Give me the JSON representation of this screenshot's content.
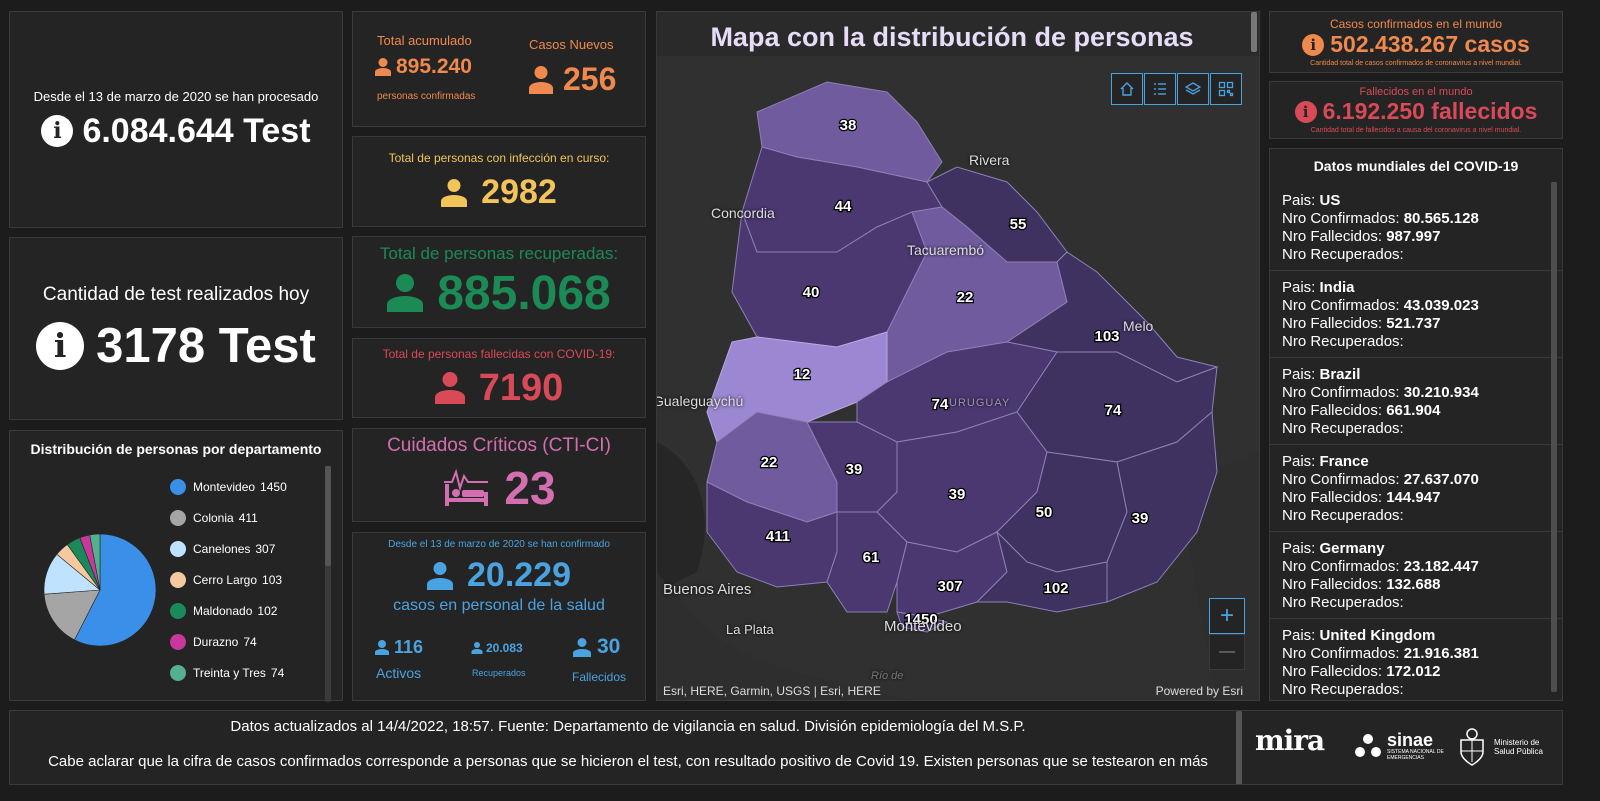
{
  "tests_total": {
    "caption": "Desde el 13 de marzo de 2020 se han procesado",
    "value": "6.084.644 Test"
  },
  "tests_today": {
    "caption": "Cantidad de test realizados hoy",
    "value": "3178 Test"
  },
  "distribution": {
    "title": "Distribución de personas por departamento",
    "items": [
      {
        "name": "Montevideo",
        "value": "1450",
        "color": "#3a8fe8"
      },
      {
        "name": "Colonia",
        "value": "411",
        "color": "#a5a5a5"
      },
      {
        "name": "Canelones",
        "value": "307",
        "color": "#bfe3ff"
      },
      {
        "name": "Cerro Largo",
        "value": "103",
        "color": "#f4c9a0"
      },
      {
        "name": "Maldonado",
        "value": "102",
        "color": "#1a8a5a"
      },
      {
        "name": "Durazno",
        "value": "74",
        "color": "#c7389a"
      },
      {
        "name": "Treinta y Tres",
        "value": "74",
        "color": "#54b08f"
      }
    ]
  },
  "accumulated": {
    "label": "Total acumulado",
    "value": "895.240",
    "sub": "personas confirmadas",
    "color": "#f0894d"
  },
  "new_cases": {
    "label": "Casos Nuevos",
    "value": "256",
    "color": "#f0894d"
  },
  "active": {
    "label": "Total de personas con infección en curso:",
    "value": "2982",
    "color": "#f2c45a"
  },
  "recovered": {
    "label": "Total de personas recuperadas:",
    "value": "885.068",
    "color": "#1b8a55"
  },
  "deceased": {
    "label": "Total de personas fallecidas con COVID-19:",
    "value": "7190",
    "color": "#d94a58"
  },
  "critical": {
    "label": "Cuidados Críticos (CTI-CI)",
    "value": "23",
    "color": "#d36fb0"
  },
  "health_staff": {
    "caption": "Desde el 13 de marzo de 2020 se han confirmado",
    "value": "20.229",
    "sub": "casos en personal de la salud",
    "color": "#4aa3e0",
    "active": {
      "value": "116",
      "label": "Activos"
    },
    "recovered": {
      "value": "20.083",
      "label": "Recuperados"
    },
    "deceased": {
      "value": "30",
      "label": "Fallecidos"
    }
  },
  "map": {
    "title": "Mapa con la distribución de personas",
    "labels": {
      "rivera": "Rivera",
      "concordia": "Concordia",
      "tacuarembo": "Tacuarembó",
      "melo": "Melo",
      "gualeguaychu": "Gualeguaychú",
      "uruguay": "URUGUAY",
      "buenos_aires": "Buenos Aires",
      "la_plata": "La Plata",
      "montevideo": "Montevideo",
      "rio": "Río de"
    },
    "counts": {
      "artigas": "38",
      "salto": "44",
      "rivera": "55",
      "paysandu": "40",
      "tacuarembo": "22",
      "cerro_largo": "103",
      "rio_negro": "12",
      "durazno": "74",
      "treinta_y_tres": "74",
      "soriano": "22",
      "flores": "39",
      "florida": "39",
      "lavalleja": "50",
      "rocha": "39",
      "colonia": "411",
      "san_jose": "61",
      "canelones": "307",
      "maldonado": "102",
      "montevideo": "1450"
    },
    "attribution": "Esri, HERE, Garmin, USGS | Esri, HERE",
    "powered": "Powered by Esri",
    "zoom_in": "+",
    "zoom_out": "—"
  },
  "world_confirmed": {
    "title": "Casos confirmados en el mundo",
    "value": "502.438.267 casos",
    "sub": "Cantidad total de casos confirmados de coronavirus a nivel mundial.",
    "color": "#f0894d"
  },
  "world_deaths": {
    "title": "Fallecidos en el mundo",
    "value": "6.192.250 fallecidos",
    "sub": "Cantidad total de fallecidos a causa del coronavirus a nivel mundial.",
    "color": "#d94a58"
  },
  "world_data": {
    "title": "Datos mundiales del COVID-19",
    "label_country": "Pais: ",
    "label_confirmed": "Nro Confirmados: ",
    "label_deaths": "Nro Fallecidos: ",
    "label_recovered": "Nro Recuperados:",
    "countries": [
      {
        "name": "US",
        "confirmed": "80.565.128",
        "deaths": "987.997"
      },
      {
        "name": "India",
        "confirmed": "43.039.023",
        "deaths": "521.737"
      },
      {
        "name": "Brazil",
        "confirmed": "30.210.934",
        "deaths": "661.904"
      },
      {
        "name": "France",
        "confirmed": "27.637.070",
        "deaths": "144.947"
      },
      {
        "name": "Germany",
        "confirmed": "23.182.447",
        "deaths": "132.688"
      },
      {
        "name": "United Kingdom",
        "confirmed": "21.916.381",
        "deaths": "172.012"
      }
    ]
  },
  "footer": {
    "line1": "Datos actualizados al 14/4/2022, 18:57. Fuente: Departamento de vigilancia en salud. División epidemiología del M.S.P.",
    "line2": "Cabe aclarar que la cifra de casos confirmados corresponde a personas que se hicieron el test, con resultado positivo de Covid 19. Existen personas que se testearon en más",
    "logos": {
      "mira": "mira",
      "sinae": "sinae",
      "sinae_sub": "SISTEMA NACIONAL DE EMERGENCIAS",
      "msp": "Ministerio de Salud Pública"
    }
  }
}
